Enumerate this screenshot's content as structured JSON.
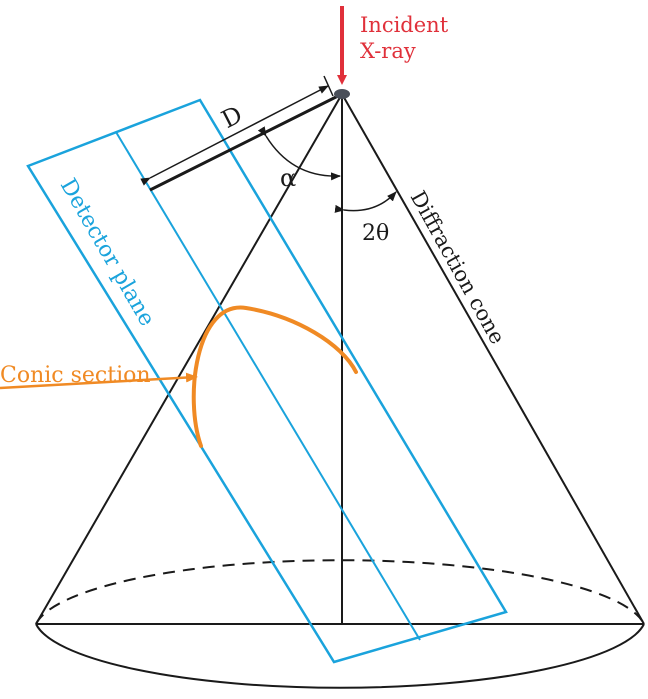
{
  "labels": {
    "incident_line1": "Incident",
    "incident_line2": "X-ray",
    "distance": "D",
    "tilt_angle": "α",
    "two_theta": "2θ",
    "detector_plane": "Detector plane",
    "diffraction_cone": "Diffraction cone",
    "conic_section": "Conic section"
  },
  "colors": {
    "beam": "#e0303a",
    "detector": "#1aa3dc",
    "conic": "#f08a24",
    "lines": "#1a1a1a"
  }
}
